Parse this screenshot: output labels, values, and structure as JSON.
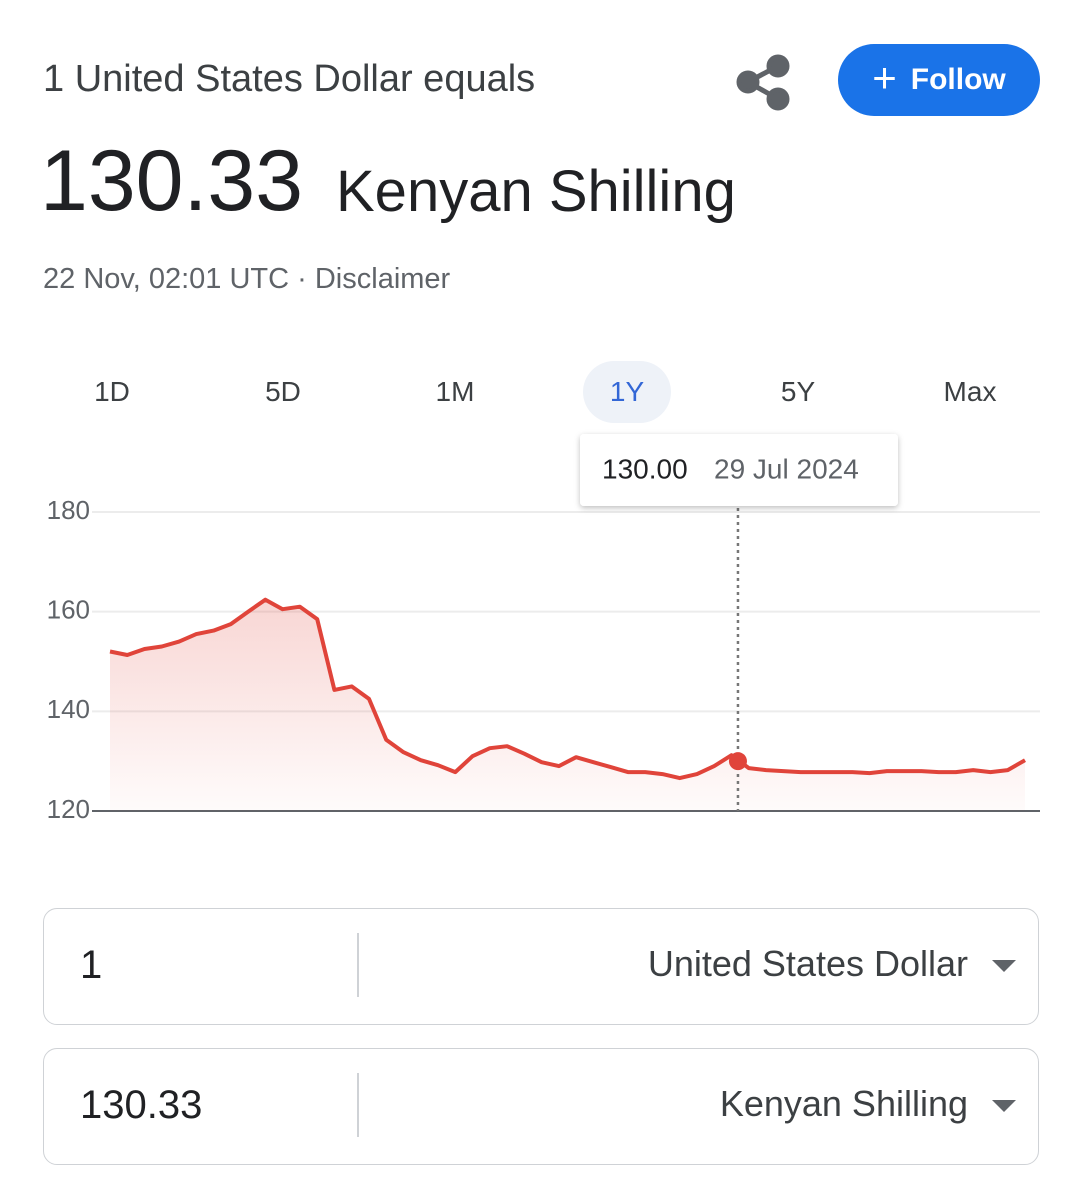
{
  "header": {
    "subtitle": "1 United States Dollar equals",
    "rate": "130.33",
    "currency": "Kenyan Shilling",
    "timestamp": "22 Nov, 02:01 UTC",
    "disclaimer": "Disclaimer",
    "follow": "Follow"
  },
  "ranges": {
    "options": [
      "1D",
      "5D",
      "1M",
      "1Y",
      "5Y",
      "Max"
    ],
    "selected": "1Y"
  },
  "chart_data": {
    "type": "line",
    "color": "#e0443a",
    "values": [
      152,
      151.3,
      152.5,
      153,
      154,
      155.5,
      156.2,
      157.5,
      160,
      162.4,
      160.5,
      161,
      158.5,
      144.3,
      145,
      142.5,
      134.3,
      131.8,
      130.2,
      129.2,
      127.8,
      131,
      132.6,
      133,
      131.5,
      129.8,
      129,
      130.8,
      129.8,
      128.8,
      127.8,
      127.8,
      127.4,
      126.6,
      127.4,
      129,
      131.2,
      128.6,
      128.2,
      128,
      127.8,
      127.8,
      127.8,
      127.8,
      127.6,
      128,
      128,
      128,
      127.8,
      127.8,
      128.2,
      127.8,
      128.2,
      130.2
    ],
    "ylim": [
      120,
      180
    ],
    "yticks": [
      120,
      140,
      160,
      180
    ],
    "grid": true,
    "highlight": {
      "value": 130,
      "value_label": "130.00",
      "date": "29 Jul 2024"
    }
  },
  "converter": {
    "rows": [
      {
        "amount": "1",
        "currency": "United States Dollar"
      },
      {
        "amount": "130.33",
        "currency": "Kenyan Shilling"
      }
    ]
  }
}
